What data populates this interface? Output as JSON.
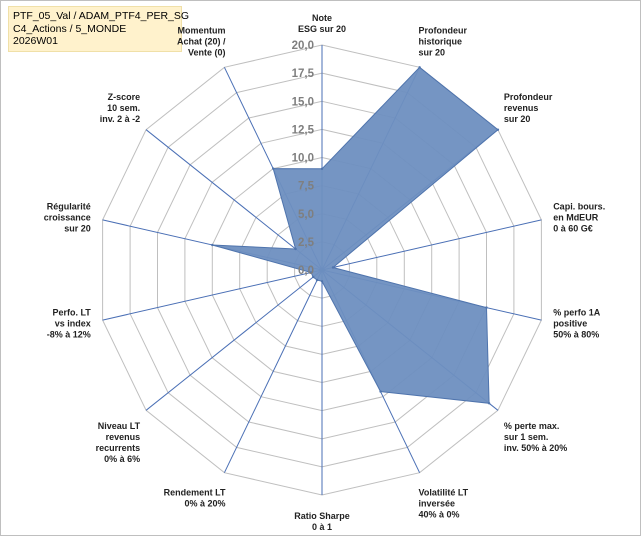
{
  "info": {
    "line1": "PTF_05_Val / ADAM_PTF4_PER_SG",
    "line2": "C4_Actions / 5_MONDE",
    "line3": "2026W01"
  },
  "chart_data": {
    "type": "radar",
    "rmin": 0,
    "rmax": 20,
    "tick_labels": [
      "0,0",
      "2,5",
      "5,0",
      "7,5",
      "10,0",
      "12,5",
      "15,0",
      "17,5",
      "20,0"
    ],
    "axes": [
      {
        "label": [
          "Note",
          "ESG sur 20"
        ],
        "value": 9
      },
      {
        "label": [
          "Profondeur",
          "historique",
          "sur 20"
        ],
        "value": 20
      },
      {
        "label": [
          "Profondeur",
          "revenus",
          "sur 20"
        ],
        "value": 20
      },
      {
        "label": [
          "Capi. bours.",
          "en MdEUR",
          "0 à 60 G€"
        ],
        "value": 1
      },
      {
        "label": [
          "% perfo 1A",
          "positive",
          "50% à 80%"
        ],
        "value": 15
      },
      {
        "label": [
          "% perte max.",
          "sur 1 sem.",
          "inv. 50% à 20%"
        ],
        "value": 19
      },
      {
        "label": [
          "Volatilité LT",
          "inversée",
          "40% à 0%"
        ],
        "value": 12
      },
      {
        "label": [
          "Ratio Sharpe",
          "0 à 1"
        ],
        "value": 1
      },
      {
        "label": [
          "Rendement LT",
          "0% à 20%"
        ],
        "value": 1
      },
      {
        "label": [
          "Niveau LT",
          "revenus",
          "recurrents",
          "0% à 6%"
        ],
        "value": 1
      },
      {
        "label": [
          "Perfo. LT",
          "vs index",
          "-8% à 12%"
        ],
        "value": 1
      },
      {
        "label": [
          "Régularité",
          "croissance",
          "sur 20"
        ],
        "value": 10
      },
      {
        "label": [
          "Z-score",
          "10 sem.",
          "inv. 2 à -2"
        ],
        "value": 3
      },
      {
        "label": [
          "Momentum",
          "Achat (20) /",
          "Vente (0)"
        ],
        "value": 10
      }
    ],
    "colors": {
      "fill": "#6e8fc0",
      "stroke": "#4f74ad",
      "spoke": "#4a6fb5",
      "grid": "#bfbfbf"
    },
    "grid": true,
    "legend": "none"
  }
}
